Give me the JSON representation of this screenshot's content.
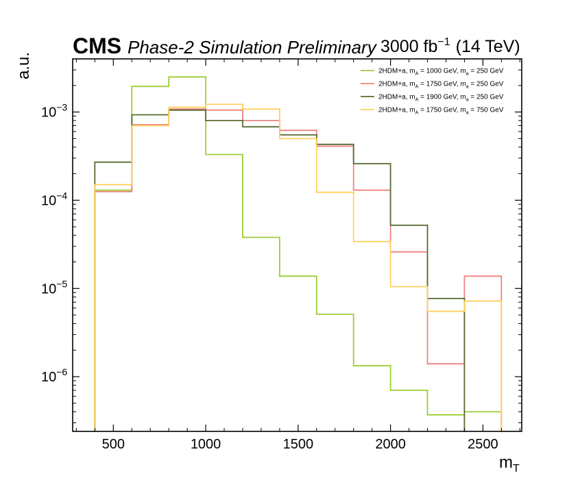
{
  "header": {
    "experiment": "CMS",
    "status": "Phase-2 Simulation Preliminary",
    "lumi_value": "3000 fb",
    "lumi_exp": "−1",
    "energy": "(14 TeV)"
  },
  "chart_data": {
    "type": "histogram-step",
    "xlabel": {
      "main": "m",
      "sub": "T"
    },
    "ylabel": "a.u.",
    "yscale": "log",
    "xlim": [
      280,
      2710
    ],
    "ylim": [
      2.4e-07,
      0.004
    ],
    "x_ticks": [
      500,
      1000,
      1500,
      2000,
      2500
    ],
    "x_tick_labels": [
      "500",
      "1000",
      "1500",
      "2000",
      "2500"
    ],
    "y_ticks": [
      0.001,
      0.0001,
      1e-05,
      1e-06
    ],
    "y_tick_labels": [
      {
        "base": "10",
        "exp": "−3"
      },
      {
        "base": "10",
        "exp": "−4"
      },
      {
        "base": "10",
        "exp": "−5"
      },
      {
        "base": "10",
        "exp": "−6"
      }
    ],
    "bin_edges": [
      400,
      600,
      800,
      1000,
      1200,
      1400,
      1600,
      1800,
      2000,
      2200,
      2400,
      2600
    ],
    "legend_position": "top-right",
    "grid": false,
    "series": [
      {
        "name": "2HDM+a, m_A = 1000 GeV, m_a = 250 GeV",
        "legend_parts": [
          "2HDM+a, m",
          "A",
          " = 1000 GeV, m",
          "a",
          " = 250 GeV"
        ],
        "color": "#9acd32",
        "values": [
          0.00013,
          0.00195,
          0.0025,
          0.00033,
          3.8e-05,
          1.38e-05,
          5.1e-06,
          1.33e-06,
          7e-07,
          3.7e-07,
          4e-07
        ]
      },
      {
        "name": "2HDM+a, m_A = 1750 GeV, m_a = 250 GeV",
        "legend_parts": [
          "2HDM+a, m",
          "A",
          " = 1750 GeV, m",
          "a",
          " = 250 GeV"
        ],
        "color": "#f08080",
        "values": [
          0.000125,
          0.00072,
          0.00108,
          0.00105,
          0.0008,
          0.00062,
          0.00041,
          0.00013,
          2.6e-05,
          1.4e-06,
          1.38e-05
        ]
      },
      {
        "name": "2HDM+a, m_A = 1900 GeV, m_a = 250 GeV",
        "legend_parts": [
          "2HDM+a, m",
          "A",
          " = 1900 GeV, m",
          "a",
          " = 250 GeV"
        ],
        "color": "#556b2f",
        "values": [
          0.00027,
          0.00093,
          0.00105,
          0.0008,
          0.00068,
          0.00055,
          0.00043,
          0.00026,
          5.2e-05,
          7.7e-06,
          null
        ]
      },
      {
        "name": "2HDM+a, m_A = 1750 GeV, m_a = 750 GeV",
        "legend_parts": [
          "2HDM+a, m",
          "A",
          " = 1750 GeV, m",
          "a",
          " = 750 GeV"
        ],
        "color": "#ffd05a",
        "values": [
          0.00015,
          0.0007,
          0.00113,
          0.00122,
          0.00108,
          0.0005,
          0.000123,
          3.4e-05,
          1.05e-05,
          5.5e-06,
          7.2e-06
        ]
      }
    ]
  }
}
